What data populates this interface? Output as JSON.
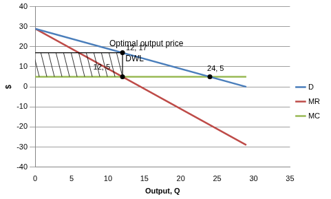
{
  "chart_data": {
    "type": "line",
    "x": [
      0,
      29
    ],
    "series": [
      {
        "name": "D",
        "color": "#4a7ebb",
        "values": [
          29,
          0
        ]
      },
      {
        "name": "MR",
        "color": "#be4b48",
        "values": [
          29,
          -29
        ]
      },
      {
        "name": "MC",
        "color": "#98b954",
        "values": [
          5,
          5
        ]
      }
    ],
    "x_label": "Output, Q",
    "y_label": "$",
    "xlim": [
      0,
      35
    ],
    "xticks": [
      0,
      5,
      10,
      15,
      20,
      25,
      30,
      35
    ],
    "ylim": [
      -40,
      40
    ],
    "yticks": [
      -40,
      -30,
      -20,
      -10,
      0,
      10,
      20,
      30,
      40
    ],
    "grid": true,
    "legend": "right",
    "points": [
      {
        "x": 12,
        "y": 17,
        "label": "12, 17"
      },
      {
        "x": 12,
        "y": 5,
        "label": "12, 5"
      },
      {
        "x": 24,
        "y": 5,
        "label": "24, 5"
      }
    ],
    "segments": [
      {
        "x": [
          12,
          12
        ],
        "y": [
          5,
          17
        ]
      },
      {
        "x": [
          0,
          12
        ],
        "y": [
          17,
          17
        ]
      }
    ],
    "shaded_region": {
      "x": [
        0,
        12
      ],
      "y": [
        5,
        17
      ]
    },
    "annotations": [
      {
        "text": "Optimal output price",
        "x": 10.2,
        "y": 21.5
      },
      {
        "text": "DWL",
        "x": 12.4,
        "y": 14
      }
    ]
  }
}
